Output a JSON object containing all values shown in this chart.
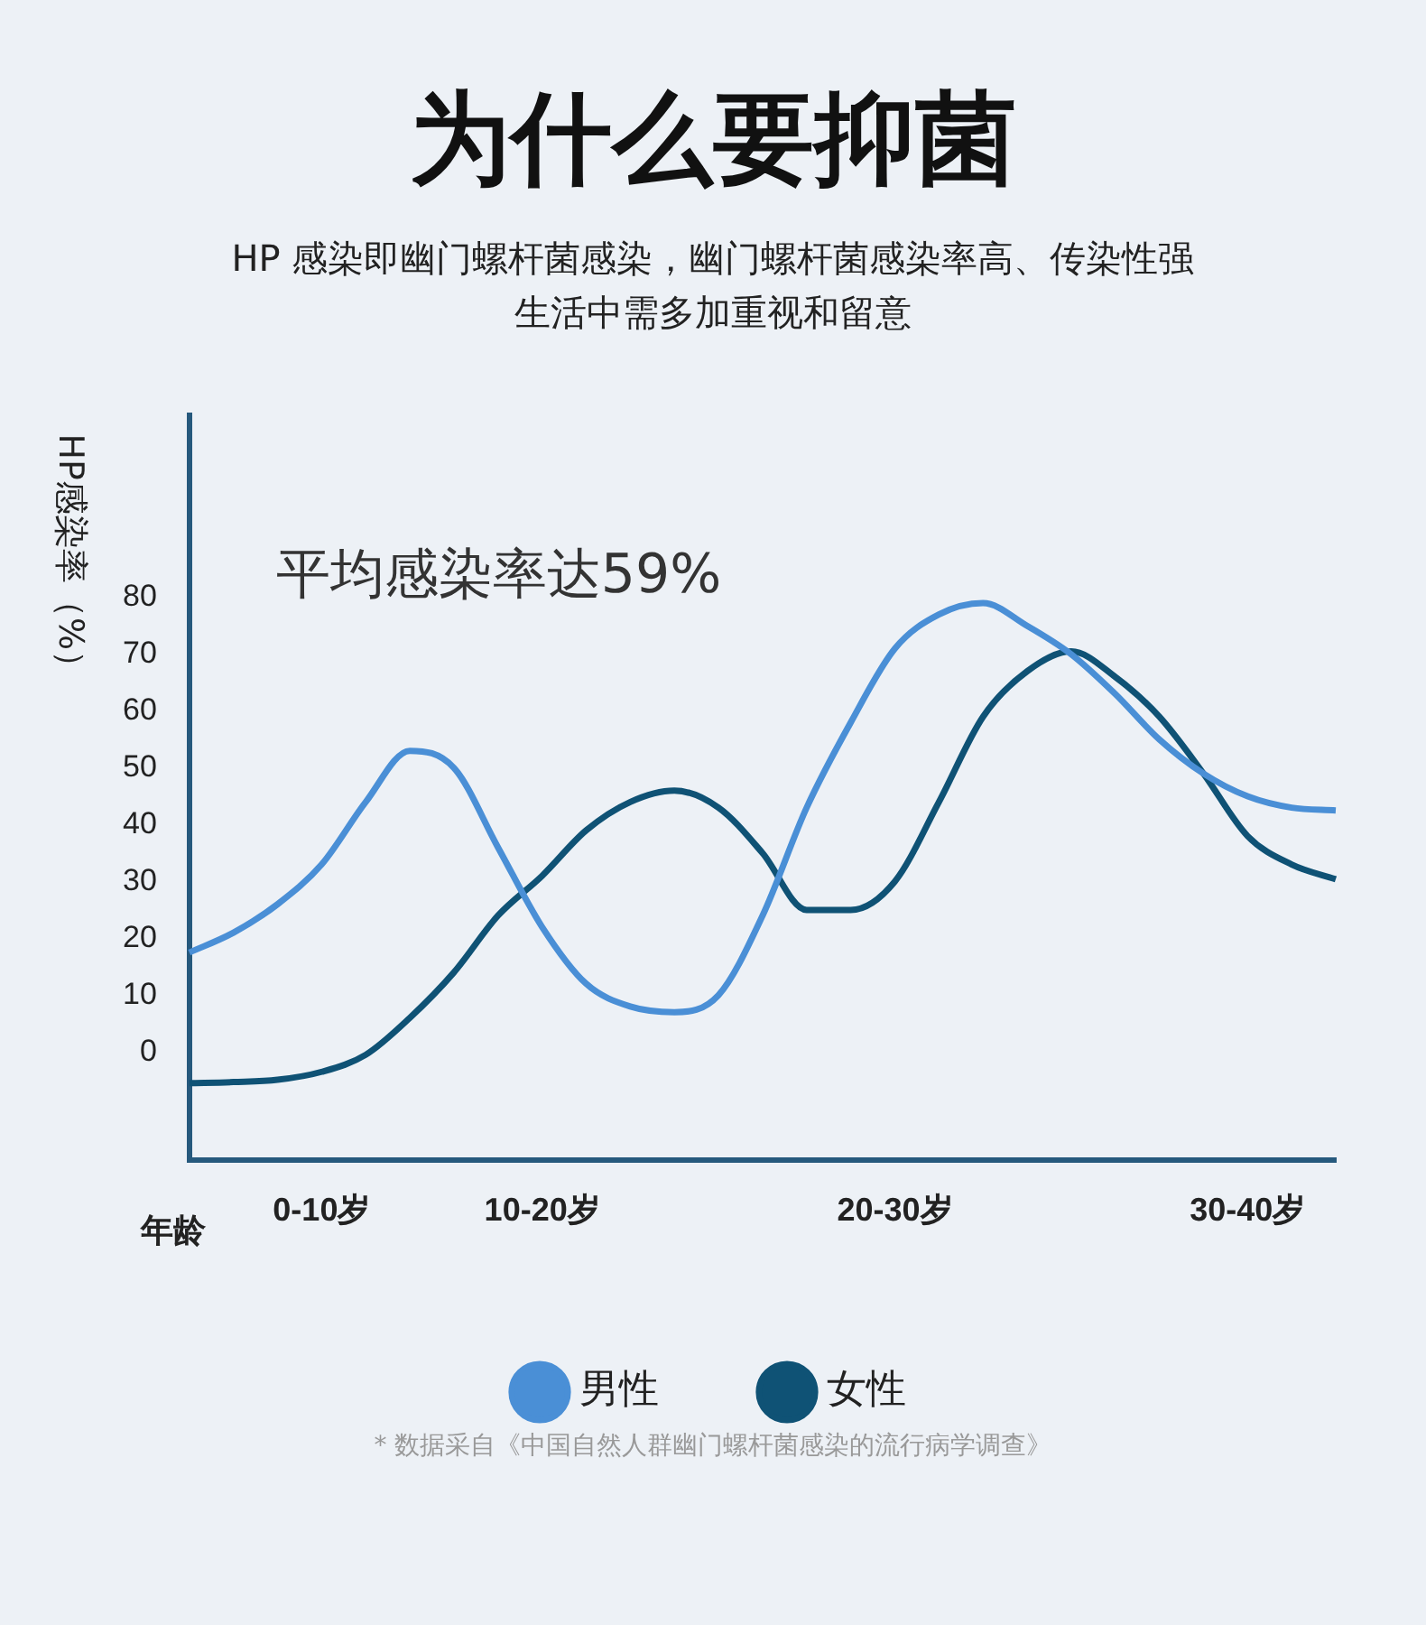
{
  "chart_data": {
    "type": "line",
    "title": "为什么要抑菌",
    "subtitle": "HP 感染即幽门螺杆菌感染，幽门螺杆菌感染率高、传染性强生活中需多加重视和留意",
    "xlabel": "年龄",
    "ylabel": "HP感染率（%）",
    "categories": [
      null,
      null,
      null,
      "0-10岁",
      null,
      null,
      null,
      null,
      "10-20岁",
      null,
      null,
      null,
      null,
      null,
      null,
      null,
      "20-30岁",
      null,
      null,
      null,
      null,
      null,
      null,
      null,
      "30-40岁",
      null,
      null
    ],
    "ylim": [
      -19,
      112
    ],
    "yticks": [
      0,
      10,
      20,
      30,
      40,
      50,
      60,
      70,
      80
    ],
    "series": [
      {
        "name": "男性",
        "color": "#4a8fd6",
        "values": [
          17.5,
          21,
          26,
          33,
          44,
          53,
          50,
          36,
          22,
          12,
          8,
          7,
          10,
          24,
          43,
          58,
          71,
          77,
          79,
          75,
          70,
          63,
          55,
          49,
          45,
          43,
          42.5
        ]
      },
      {
        "name": "女性",
        "color": "#0f5275",
        "values": [
          -5.5,
          -5.3,
          -4.9,
          -3.5,
          -0.5,
          6,
          14,
          24,
          31,
          39,
          44,
          46,
          43,
          35,
          25,
          25,
          30,
          44,
          59,
          67,
          70.5,
          66,
          59,
          49,
          38,
          33,
          30.4
        ]
      }
    ],
    "annotations": [
      "平均感染率达59%",
      "* 数据采自《中国自然人群幽门螺杆菌感染的流行病学调查》"
    ],
    "legend": "bottom",
    "marker": "none",
    "line_style": "solid",
    "grid": false
  }
}
